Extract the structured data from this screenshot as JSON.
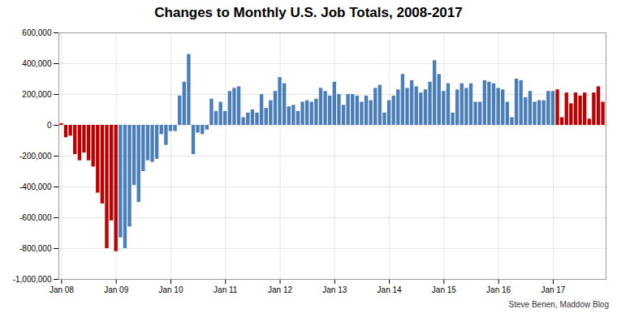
{
  "chart_data": {
    "type": "bar",
    "title": "Changes to Monthly U.S. Job Totals, 2008-2017",
    "caption": "Steve Benen, Maddow Blog",
    "categories": [
      "Jan 08",
      null,
      null,
      null,
      null,
      null,
      null,
      null,
      null,
      null,
      null,
      null,
      "Jan 09",
      null,
      null,
      null,
      null,
      null,
      null,
      null,
      null,
      null,
      null,
      null,
      "Jan 10",
      null,
      null,
      null,
      null,
      null,
      null,
      null,
      null,
      null,
      null,
      null,
      "Jan 11",
      null,
      null,
      null,
      null,
      null,
      null,
      null,
      null,
      null,
      null,
      null,
      "Jan 12",
      null,
      null,
      null,
      null,
      null,
      null,
      null,
      null,
      null,
      null,
      null,
      "Jan 13",
      null,
      null,
      null,
      null,
      null,
      null,
      null,
      null,
      null,
      null,
      null,
      "Jan 14",
      null,
      null,
      null,
      null,
      null,
      null,
      null,
      null,
      null,
      null,
      null,
      "Jan 15",
      null,
      null,
      null,
      null,
      null,
      null,
      null,
      null,
      null,
      null,
      null,
      "Jan 16",
      null,
      null,
      null,
      null,
      null,
      null,
      null,
      null,
      null,
      null,
      null,
      "Jan 17",
      null,
      null,
      null,
      null,
      null,
      null,
      null,
      null,
      null,
      null,
      null
    ],
    "values": [
      10000,
      -80000,
      -70000,
      -190000,
      -230000,
      -180000,
      -230000,
      -270000,
      -440000,
      -510000,
      -800000,
      -620000,
      -820000,
      -730000,
      -800000,
      -660000,
      -390000,
      -500000,
      -300000,
      -230000,
      -240000,
      -220000,
      -60000,
      -130000,
      -40000,
      -40000,
      190000,
      280000,
      460000,
      -190000,
      -50000,
      -60000,
      -30000,
      170000,
      90000,
      150000,
      90000,
      220000,
      240000,
      250000,
      50000,
      80000,
      100000,
      80000,
      200000,
      110000,
      160000,
      220000,
      310000,
      270000,
      120000,
      130000,
      90000,
      150000,
      160000,
      150000,
      170000,
      240000,
      220000,
      190000,
      280000,
      200000,
      130000,
      200000,
      200000,
      190000,
      150000,
      190000,
      160000,
      240000,
      260000,
      80000,
      160000,
      190000,
      230000,
      330000,
      240000,
      290000,
      250000,
      210000,
      230000,
      280000,
      420000,
      330000,
      220000,
      270000,
      80000,
      230000,
      270000,
      240000,
      270000,
      150000,
      150000,
      290000,
      280000,
      270000,
      240000,
      230000,
      150000,
      50000,
      300000,
      290000,
      180000,
      220000,
      150000,
      160000,
      160000,
      220000,
      220000,
      230000,
      50000,
      210000,
      140000,
      210000,
      190000,
      210000,
      40000,
      210000,
      250000,
      150000
    ],
    "colors": [
      "#c00000",
      "#c00000",
      "#c00000",
      "#c00000",
      "#c00000",
      "#c00000",
      "#c00000",
      "#c00000",
      "#c00000",
      "#c00000",
      "#c00000",
      "#c00000",
      "#c00000",
      "#4a7ebb",
      "#4a7ebb",
      "#4a7ebb",
      "#4a7ebb",
      "#4a7ebb",
      "#4a7ebb",
      "#4a7ebb",
      "#4a7ebb",
      "#4a7ebb",
      "#4a7ebb",
      "#4a7ebb",
      "#4a7ebb",
      "#4a7ebb",
      "#4a7ebb",
      "#4a7ebb",
      "#4a7ebb",
      "#4a7ebb",
      "#4a7ebb",
      "#4a7ebb",
      "#4a7ebb",
      "#4a7ebb",
      "#4a7ebb",
      "#4a7ebb",
      "#4a7ebb",
      "#4a7ebb",
      "#4a7ebb",
      "#4a7ebb",
      "#4a7ebb",
      "#4a7ebb",
      "#4a7ebb",
      "#4a7ebb",
      "#4a7ebb",
      "#4a7ebb",
      "#4a7ebb",
      "#4a7ebb",
      "#4a7ebb",
      "#4a7ebb",
      "#4a7ebb",
      "#4a7ebb",
      "#4a7ebb",
      "#4a7ebb",
      "#4a7ebb",
      "#4a7ebb",
      "#4a7ebb",
      "#4a7ebb",
      "#4a7ebb",
      "#4a7ebb",
      "#4a7ebb",
      "#4a7ebb",
      "#4a7ebb",
      "#4a7ebb",
      "#4a7ebb",
      "#4a7ebb",
      "#4a7ebb",
      "#4a7ebb",
      "#4a7ebb",
      "#4a7ebb",
      "#4a7ebb",
      "#4a7ebb",
      "#4a7ebb",
      "#4a7ebb",
      "#4a7ebb",
      "#4a7ebb",
      "#4a7ebb",
      "#4a7ebb",
      "#4a7ebb",
      "#4a7ebb",
      "#4a7ebb",
      "#4a7ebb",
      "#4a7ebb",
      "#4a7ebb",
      "#4a7ebb",
      "#4a7ebb",
      "#4a7ebb",
      "#4a7ebb",
      "#4a7ebb",
      "#4a7ebb",
      "#4a7ebb",
      "#4a7ebb",
      "#4a7ebb",
      "#4a7ebb",
      "#4a7ebb",
      "#4a7ebb",
      "#4a7ebb",
      "#4a7ebb",
      "#4a7ebb",
      "#4a7ebb",
      "#4a7ebb",
      "#4a7ebb",
      "#4a7ebb",
      "#4a7ebb",
      "#4a7ebb",
      "#4a7ebb",
      "#4a7ebb",
      "#4a7ebb",
      "#4a7ebb",
      "#c00000",
      "#c00000",
      "#c00000",
      "#c00000",
      "#c00000",
      "#c00000",
      "#c00000",
      "#c00000",
      "#c00000",
      "#c00000",
      "#c00000"
    ],
    "ylim": [
      -1000000,
      600000
    ],
    "yticks": [
      {
        "value": -1000000,
        "label": "-1,000,000"
      },
      {
        "value": -800000,
        "label": "-800,000"
      },
      {
        "value": -600000,
        "label": "-600,000"
      },
      {
        "value": -400000,
        "label": "-400,000"
      },
      {
        "value": -200000,
        "label": "-200,000"
      },
      0,
      {
        "value": 200000,
        "label": "200,000"
      },
      {
        "value": 400000,
        "label": "400,000"
      },
      {
        "value": 600000,
        "label": "600,000"
      }
    ],
    "grid": true
  }
}
